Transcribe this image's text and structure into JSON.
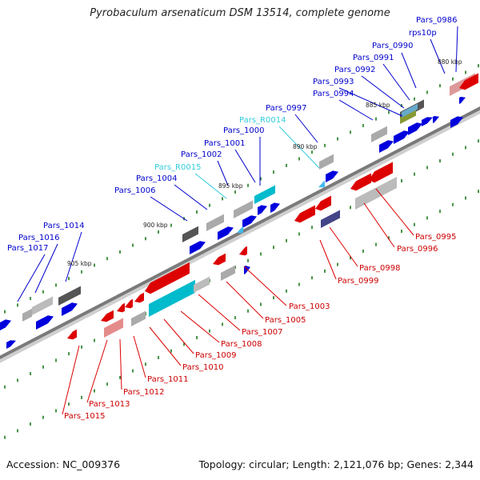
{
  "title": "Pyrobaculum arsenaticum DSM 13514, complete genome",
  "footer": {
    "accession": "Accession: NC_009376",
    "summary": "Topology: circular; Length: 2,121,076 bp; Genes: 2,344"
  },
  "colors": {
    "forward_cds": "#0000dd",
    "reverse_cds": "#dd0000",
    "rna": "#00bbcc",
    "pseudo_gray": "#aaaaaa",
    "dark_gray": "#555555",
    "tick": "#1a7a1a",
    "axis": "#7a7a7a"
  },
  "kbp_marks": [
    "880 kbp",
    "885 kbp",
    "890 kbp",
    "895 kbp",
    "900 kbp",
    "905 kbp"
  ],
  "labels_upper": [
    {
      "text": "Pars_0986",
      "type": "cds"
    },
    {
      "text": "rps10p",
      "type": "cds"
    },
    {
      "text": "Pars_0990",
      "type": "cds"
    },
    {
      "text": "Pars_0991",
      "type": "cds"
    },
    {
      "text": "Pars_0992",
      "type": "cds"
    },
    {
      "text": "Pars_0993",
      "type": "cds"
    },
    {
      "text": "Pars_0994",
      "type": "cds"
    },
    {
      "text": "Pars_0997",
      "type": "cds"
    },
    {
      "text": "Pars_R0014",
      "type": "rna"
    },
    {
      "text": "Pars_1000",
      "type": "cds"
    },
    {
      "text": "Pars_1001",
      "type": "cds"
    },
    {
      "text": "Pars_1002",
      "type": "cds"
    },
    {
      "text": "Pars_R0015",
      "type": "rna"
    },
    {
      "text": "Pars_1004",
      "type": "cds"
    },
    {
      "text": "Pars_1006",
      "type": "cds"
    },
    {
      "text": "Pars_1014",
      "type": "cds"
    },
    {
      "text": "Pars_1016",
      "type": "cds"
    },
    {
      "text": "Pars_1017",
      "type": "cds"
    }
  ],
  "labels_lower": [
    {
      "text": "Pars_0995"
    },
    {
      "text": "Pars_0996"
    },
    {
      "text": "Pars_0998"
    },
    {
      "text": "Pars_0999"
    },
    {
      "text": "Pars_1003"
    },
    {
      "text": "Pars_1005"
    },
    {
      "text": "Pars_1007"
    },
    {
      "text": "Pars_1008"
    },
    {
      "text": "Pars_1009"
    },
    {
      "text": "Pars_1010"
    },
    {
      "text": "Pars_1011"
    },
    {
      "text": "Pars_1012"
    },
    {
      "text": "Pars_1013"
    },
    {
      "text": "Pars_1015"
    }
  ]
}
